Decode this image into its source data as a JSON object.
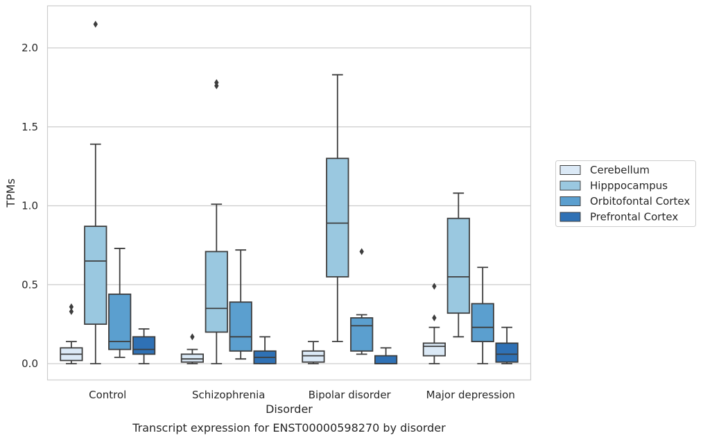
{
  "chart_data": {
    "type": "box",
    "caption": "Transcript expression for ENST00000598270 by disorder",
    "xlabel": "Disorder",
    "ylabel": "TPMs",
    "ylim": [
      -0.1,
      2.27
    ],
    "yticks": [
      0.0,
      0.5,
      1.0,
      1.5,
      2.0
    ],
    "ytick_labels": [
      "0.0",
      "0.5",
      "1.0",
      "1.5",
      "2.0"
    ],
    "grid": "horizontal",
    "legend_position": "right",
    "categories": [
      "Control",
      "Schizophrenia",
      "Bipolar disorder",
      "Major depression"
    ],
    "series": [
      {
        "name": "Cerebellum",
        "color": "#dbe9f6",
        "boxes": [
          {
            "whislo": 0.0,
            "q1": 0.02,
            "med": 0.06,
            "q3": 0.1,
            "whishi": 0.14,
            "fliers": [
              0.33,
              0.36
            ]
          },
          {
            "whislo": 0.0,
            "q1": 0.01,
            "med": 0.03,
            "q3": 0.06,
            "whishi": 0.09,
            "fliers": [
              0.17
            ]
          },
          {
            "whislo": 0.0,
            "q1": 0.01,
            "med": 0.05,
            "q3": 0.08,
            "whishi": 0.14,
            "fliers": []
          },
          {
            "whislo": 0.0,
            "q1": 0.05,
            "med": 0.11,
            "q3": 0.13,
            "whishi": 0.23,
            "fliers": [
              0.29,
              0.49
            ]
          }
        ]
      },
      {
        "name": "Hipppocampus",
        "color": "#9ac8e0",
        "boxes": [
          {
            "whislo": 0.0,
            "q1": 0.25,
            "med": 0.65,
            "q3": 0.87,
            "whishi": 1.39,
            "fliers": [
              2.15
            ]
          },
          {
            "whislo": 0.0,
            "q1": 0.2,
            "med": 0.35,
            "q3": 0.71,
            "whishi": 1.01,
            "fliers": [
              1.76,
              1.78
            ]
          },
          {
            "whislo": 0.14,
            "q1": 0.55,
            "med": 0.89,
            "q3": 1.3,
            "whishi": 1.83,
            "fliers": []
          },
          {
            "whislo": 0.17,
            "q1": 0.32,
            "med": 0.55,
            "q3": 0.92,
            "whishi": 1.08,
            "fliers": []
          }
        ]
      },
      {
        "name": "Orbitofontal Cortex",
        "color": "#5b9fcf",
        "boxes": [
          {
            "whislo": 0.04,
            "q1": 0.09,
            "med": 0.14,
            "q3": 0.44,
            "whishi": 0.73,
            "fliers": []
          },
          {
            "whislo": 0.03,
            "q1": 0.08,
            "med": 0.17,
            "q3": 0.39,
            "whishi": 0.72,
            "fliers": []
          },
          {
            "whislo": 0.06,
            "q1": 0.08,
            "med": 0.24,
            "q3": 0.29,
            "whishi": 0.31,
            "fliers": [
              0.71
            ]
          },
          {
            "whislo": 0.0,
            "q1": 0.14,
            "med": 0.23,
            "q3": 0.38,
            "whishi": 0.61,
            "fliers": []
          }
        ]
      },
      {
        "name": "Prefrontal Cortex",
        "color": "#2f71b5",
        "boxes": [
          {
            "whislo": 0.0,
            "q1": 0.06,
            "med": 0.09,
            "q3": 0.17,
            "whishi": 0.22,
            "fliers": []
          },
          {
            "whislo": 0.0,
            "q1": 0.0,
            "med": 0.04,
            "q3": 0.08,
            "whishi": 0.17,
            "fliers": []
          },
          {
            "whislo": 0.0,
            "q1": 0.0,
            "med": 0.0,
            "q3": 0.05,
            "whishi": 0.1,
            "fliers": []
          },
          {
            "whislo": 0.0,
            "q1": 0.01,
            "med": 0.06,
            "q3": 0.13,
            "whishi": 0.23,
            "fliers": []
          }
        ]
      }
    ]
  }
}
